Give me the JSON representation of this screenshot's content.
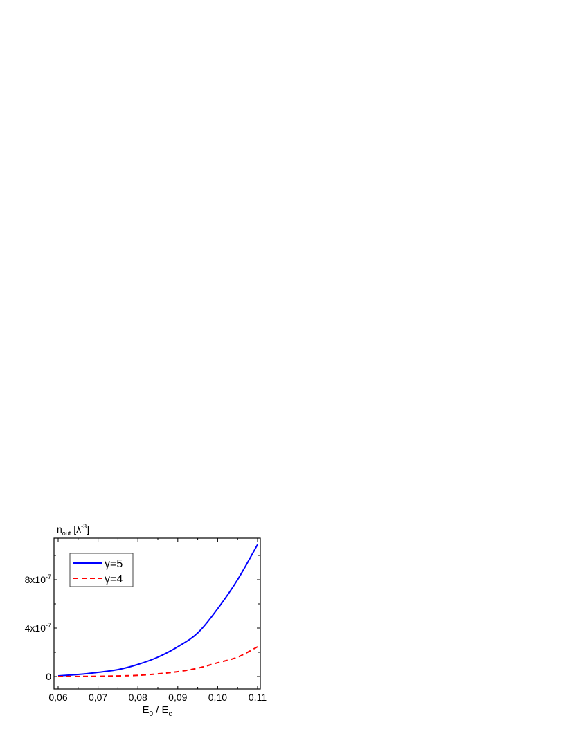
{
  "chart_data": {
    "type": "line",
    "xlabel": {
      "main": "E",
      "sub1": "0",
      "mid": " / E",
      "sub2": "c"
    },
    "ylabel": {
      "main": "n",
      "sub": "out",
      "unit_open": " [λ",
      "sup": "-3",
      "unit_close": "]"
    },
    "xlim": [
      0.06,
      0.11
    ],
    "ylim": [
      -1e-07,
      1.14e-06
    ],
    "x_ticks": [
      0.06,
      0.07,
      0.08,
      0.09,
      0.1,
      0.11
    ],
    "x_tick_labels": [
      "0,06",
      "0,07",
      "0,08",
      "0,09",
      "0,10",
      "0,11"
    ],
    "y_ticks": [
      0,
      4e-07,
      8e-07
    ],
    "y_tick_labels": [
      {
        "base": "0",
        "exp": ""
      },
      {
        "base": "4x10",
        "exp": "-7"
      },
      {
        "base": "8x10",
        "exp": "-7"
      }
    ],
    "grid": false,
    "legend_placement": "top-left",
    "series": [
      {
        "name": "γ=5",
        "color": "#0000ff",
        "dash": "solid",
        "x": [
          0.06,
          0.065,
          0.07,
          0.075,
          0.08,
          0.085,
          0.09,
          0.095,
          0.1,
          0.105,
          0.11
        ],
        "y": [
          6e-09,
          1.7e-08,
          3.4e-08,
          5.7e-08,
          1e-07,
          1.6e-07,
          2.46e-07,
          3.6e-07,
          5.6e-07,
          8e-07,
          1.09e-06
        ]
      },
      {
        "name": "γ=4",
        "color": "#ff0000",
        "dash": "dashed",
        "x": [
          0.06,
          0.065,
          0.07,
          0.075,
          0.08,
          0.085,
          0.09,
          0.095,
          0.1,
          0.105,
          0.11
        ],
        "y": [
          0.0,
          1e-09,
          2e-09,
          5e-09,
          1e-08,
          2.2e-08,
          4e-08,
          6.9e-08,
          1.14e-07,
          1.6e-07,
          2.46e-07
        ]
      }
    ]
  }
}
